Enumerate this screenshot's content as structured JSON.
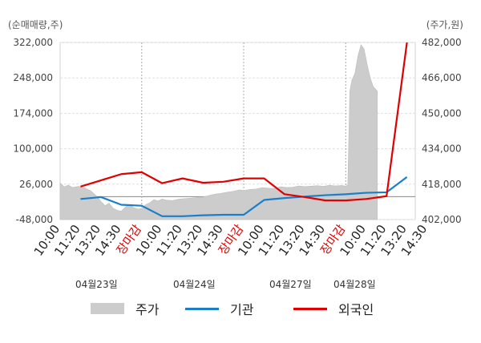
{
  "units": {
    "left": "(순매매량,주)",
    "right": "(주가,원)"
  },
  "chart_data": {
    "type": "line",
    "y_left": {
      "ticks": [
        "322,000",
        "248,000",
        "174,000",
        "100,000",
        "26,000",
        "-48,000"
      ],
      "min": -48000,
      "max": 322000
    },
    "y_right": {
      "ticks": [
        "482,000",
        "466,000",
        "450,000",
        "434,000",
        "418,000",
        "402,000"
      ],
      "min": 402000,
      "max": 482000
    },
    "x_ticks": [
      {
        "label": "10:00",
        "color": "#222222"
      },
      {
        "label": "11:20",
        "color": "#222222"
      },
      {
        "label": "13:20",
        "color": "#222222"
      },
      {
        "label": "14:30",
        "color": "#222222"
      },
      {
        "label": "장마감",
        "color": "#e00000"
      },
      {
        "label": "10:00",
        "color": "#222222"
      },
      {
        "label": "11:20",
        "color": "#222222"
      },
      {
        "label": "13:20",
        "color": "#222222"
      },
      {
        "label": "14:30",
        "color": "#222222"
      },
      {
        "label": "장마감",
        "color": "#e00000"
      },
      {
        "label": "10:00",
        "color": "#222222"
      },
      {
        "label": "11:20",
        "color": "#222222"
      },
      {
        "label": "13:20",
        "color": "#222222"
      },
      {
        "label": "14:30",
        "color": "#222222"
      },
      {
        "label": "장마감",
        "color": "#e00000"
      },
      {
        "label": "10:00",
        "color": "#222222"
      },
      {
        "label": "11:20",
        "color": "#222222"
      },
      {
        "label": "13:20",
        "color": "#222222"
      },
      {
        "label": "14:30",
        "color": "#222222"
      }
    ],
    "dates": [
      "04월23일",
      "04월24일",
      "04월27일",
      "04월28일"
    ],
    "legend": [
      {
        "name": "주가",
        "kind": "area",
        "color": "#cccccc"
      },
      {
        "name": "기관",
        "kind": "line",
        "color": "#1a7fc8"
      },
      {
        "name": "외국인",
        "kind": "line",
        "color": "#e00000"
      }
    ],
    "price_series": {
      "name": "주가",
      "x": [
        0,
        0.2,
        0.4,
        0.6,
        0.9,
        1.2,
        1.5,
        1.8,
        2.0,
        2.2,
        2.4,
        2.6,
        2.8,
        3.0,
        3.2,
        3.4,
        3.6,
        3.8,
        4.0,
        4.2,
        4.4,
        4.6,
        4.8,
        5.0,
        5.2,
        5.5,
        5.8,
        6.1,
        6.4,
        6.7,
        7.0,
        7.3,
        7.6,
        7.9,
        8.2,
        8.5,
        8.8,
        9.0,
        9.3,
        9.6,
        9.9,
        10.2,
        10.5,
        10.8,
        11.1,
        11.4,
        11.7,
        12.0,
        12.3,
        12.6,
        12.9,
        13.2,
        13.5,
        13.8,
        14.0,
        14.1,
        14.2,
        14.3,
        14.45,
        14.6,
        14.75,
        14.9,
        15.05,
        15.2,
        15.35,
        15.55
      ],
      "values": [
        418500,
        416800,
        417600,
        416500,
        417000,
        416300,
        415000,
        412500,
        410200,
        408300,
        409400,
        407100,
        406200,
        405800,
        407600,
        408900,
        407400,
        406800,
        407000,
        408800,
        409600,
        411000,
        410400,
        411300,
        410800,
        410600,
        411200,
        411500,
        411700,
        412000,
        412200,
        412900,
        413500,
        413900,
        414400,
        414800,
        415400,
        415100,
        415600,
        415800,
        416400,
        416200,
        416000,
        416800,
        416500,
        416600,
        417200,
        416900,
        417100,
        417300,
        417000,
        417500,
        417200,
        417400,
        417100,
        417600,
        460000,
        465000,
        468000,
        476000,
        481000,
        479000,
        472000,
        466000,
        462000,
        460000
      ]
    },
    "series": [
      {
        "name": "기관",
        "color": "#1a7fc8",
        "x": [
          1,
          2,
          3,
          4,
          5,
          6,
          7,
          8,
          9,
          10,
          11,
          12,
          13,
          14,
          15,
          16,
          17
        ],
        "values": [
          -5000,
          -1000,
          -17000,
          -19000,
          -41000,
          -41000,
          -39000,
          -38000,
          -38000,
          -7000,
          -3000,
          0,
          3000,
          5000,
          8000,
          9000,
          41000
        ]
      },
      {
        "name": "외국인",
        "color": "#e00000",
        "x": [
          1,
          2,
          3,
          4,
          5,
          6,
          7,
          8,
          9,
          10,
          11,
          12,
          13,
          14,
          15,
          16,
          17
        ],
        "values": [
          21000,
          34000,
          47000,
          51000,
          28000,
          38000,
          29000,
          31000,
          38000,
          38000,
          5000,
          -1000,
          -8000,
          -8000,
          -5000,
          1000,
          322000
        ]
      }
    ],
    "x_range": [
      0,
      19
    ],
    "grid": true,
    "legend_position": "bottom"
  }
}
